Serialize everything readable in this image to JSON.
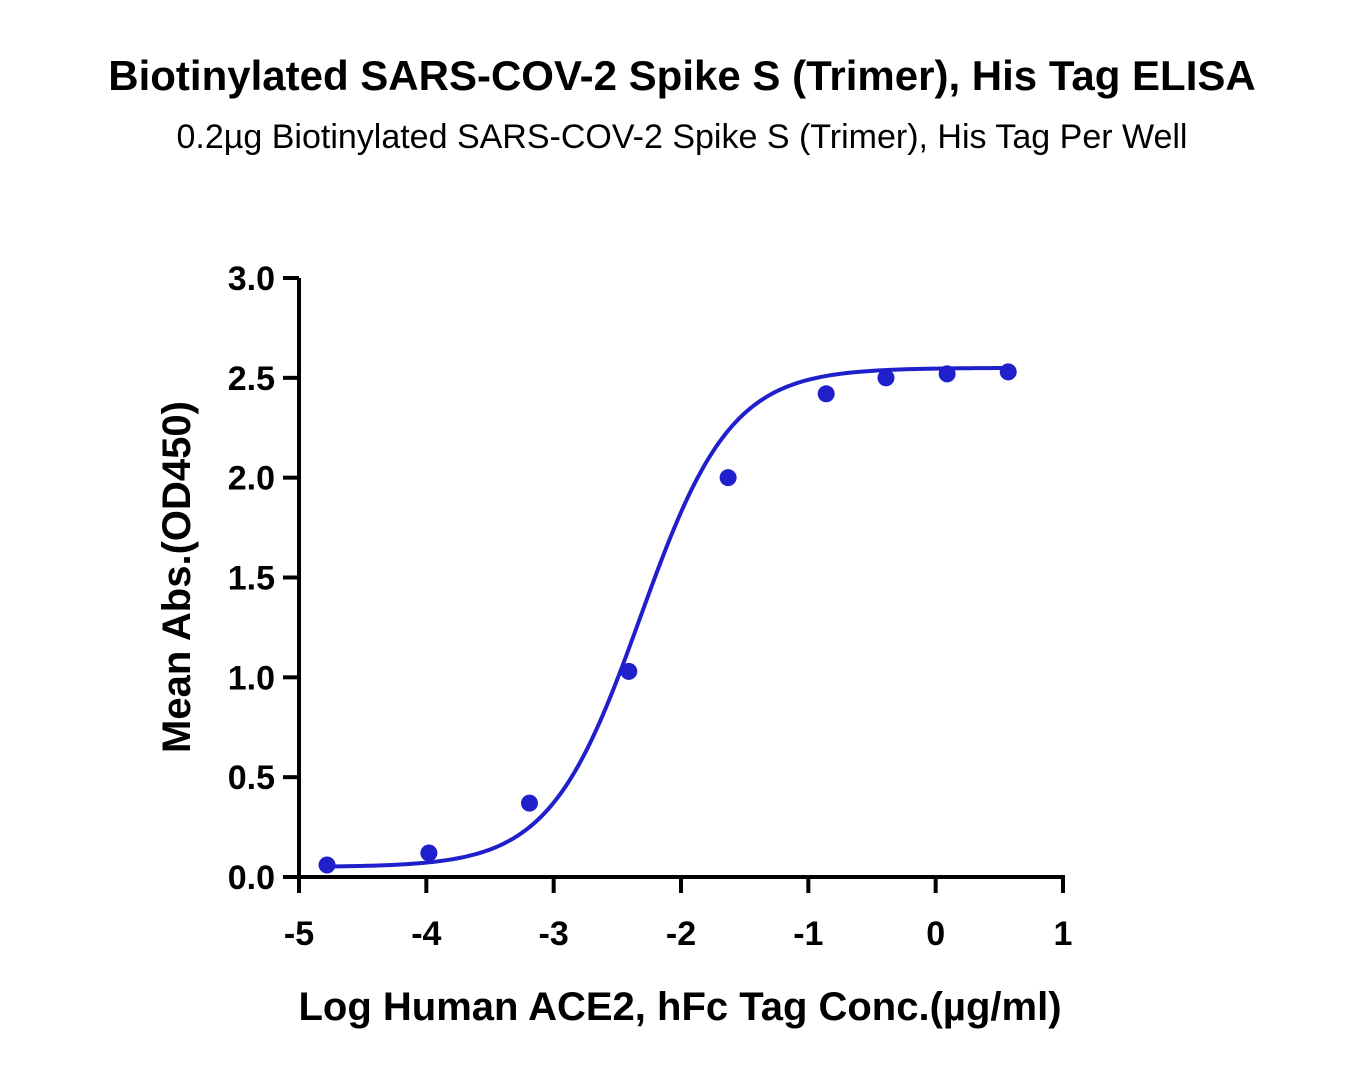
{
  "chart_data": {
    "type": "scatter",
    "title": "Biotinylated SARS-COV-2 Spike S (Trimer), His Tag ELISA",
    "subtitle": "0.2µg Biotinylated SARS-COV-2 Spike S (Trimer), His Tag Per Well",
    "xlabel": "Log Human ACE2, hFc Tag Conc.(µg/ml)",
    "ylabel": "Mean Abs.(OD450)",
    "xlim": [
      -5,
      1
    ],
    "ylim": [
      0,
      3.0
    ],
    "xticks": [
      "-5",
      "-4",
      "-3",
      "-2",
      "-1",
      "0",
      "1"
    ],
    "yticks": [
      "0.0",
      "0.5",
      "1.0",
      "1.5",
      "2.0",
      "2.5",
      "3.0"
    ],
    "grid": false,
    "color": "#1f1fcc",
    "series": [
      {
        "x": [
          -4.78,
          -3.98,
          -3.19,
          -2.41,
          -1.63,
          -0.86,
          -0.39,
          0.09,
          0.57
        ],
        "y": [
          0.06,
          0.12,
          0.37,
          1.03,
          2.0,
          2.42,
          2.5,
          2.52,
          2.53
        ],
        "fit": "4PL"
      }
    ]
  }
}
